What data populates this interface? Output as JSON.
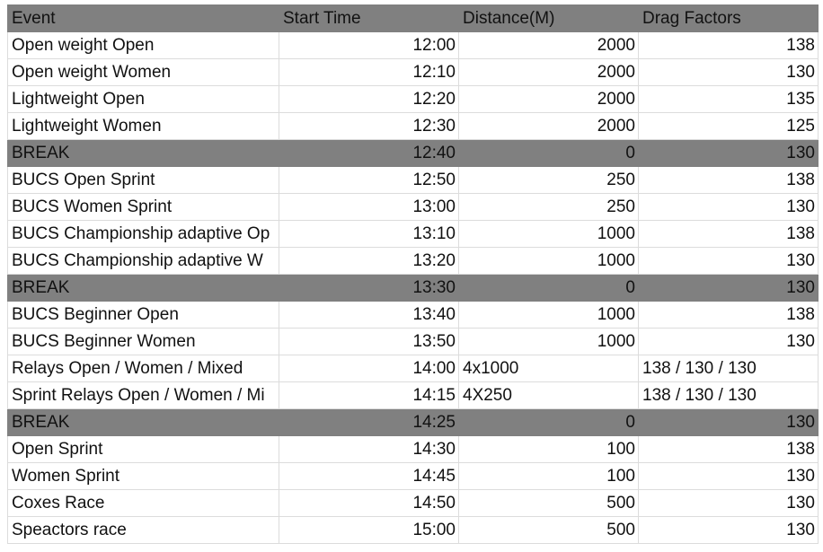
{
  "colors": {
    "header_bg": "#808080",
    "break_bg": "#808080"
  },
  "header": [
    "Event",
    "Start Time",
    "Distance(M)",
    "Drag Factors"
  ],
  "rows": [
    {
      "event": "Open weight Open",
      "time": "12:00",
      "distance": "2000",
      "drag": "138",
      "break": false
    },
    {
      "event": "Open weight Women",
      "time": "12:10",
      "distance": "2000",
      "drag": "130",
      "break": false
    },
    {
      "event": "Lightweight Open",
      "time": "12:20",
      "distance": "2000",
      "drag": "135",
      "break": false
    },
    {
      "event": "Lightweight Women",
      "time": "12:30",
      "distance": "2000",
      "drag": "125",
      "break": false
    },
    {
      "event": "BREAK",
      "time": "12:40",
      "distance": "0",
      "drag": "130",
      "break": true
    },
    {
      "event": "BUCS Open Sprint",
      "time": "12:50",
      "distance": "250",
      "drag": "138",
      "break": false
    },
    {
      "event": "BUCS Women Sprint",
      "time": "13:00",
      "distance": "250",
      "drag": "130",
      "break": false
    },
    {
      "event": "BUCS Championship adaptive Op",
      "time": "13:10",
      "distance": "1000",
      "drag": "138",
      "break": false
    },
    {
      "event": "BUCS Championship adaptive W",
      "time": "13:20",
      "distance": "1000",
      "drag": "130",
      "break": false
    },
    {
      "event": "BREAK",
      "time": "13:30",
      "distance": "0",
      "drag": "130",
      "break": true
    },
    {
      "event": "BUCS Beginner Open",
      "time": "13:40",
      "distance": "1000",
      "drag": "138",
      "break": false
    },
    {
      "event": "BUCS Beginner Women",
      "time": "13:50",
      "distance": "1000",
      "drag": "130",
      "break": false
    },
    {
      "event": "Relays Open / Women / Mixed",
      "time": "14:00",
      "distance": "4x1000",
      "drag": "138 / 130 / 130",
      "break": false,
      "text": true
    },
    {
      "event": "Sprint Relays Open / Women / Mi",
      "time": "14:15",
      "distance": "4X250",
      "drag": "138 / 130 / 130",
      "break": false,
      "text": true
    },
    {
      "event": "BREAK",
      "time": "14:25",
      "distance": "0",
      "drag": "130",
      "break": true
    },
    {
      "event": "Open Sprint",
      "time": "14:30",
      "distance": "100",
      "drag": "138",
      "break": false
    },
    {
      "event": "Women Sprint",
      "time": "14:45",
      "distance": "100",
      "drag": "130",
      "break": false
    },
    {
      "event": "Coxes Race",
      "time": "14:50",
      "distance": "500",
      "drag": "130",
      "break": false
    },
    {
      "event": "Speactors race",
      "time": "15:00",
      "distance": "500",
      "drag": "130",
      "break": false
    }
  ]
}
